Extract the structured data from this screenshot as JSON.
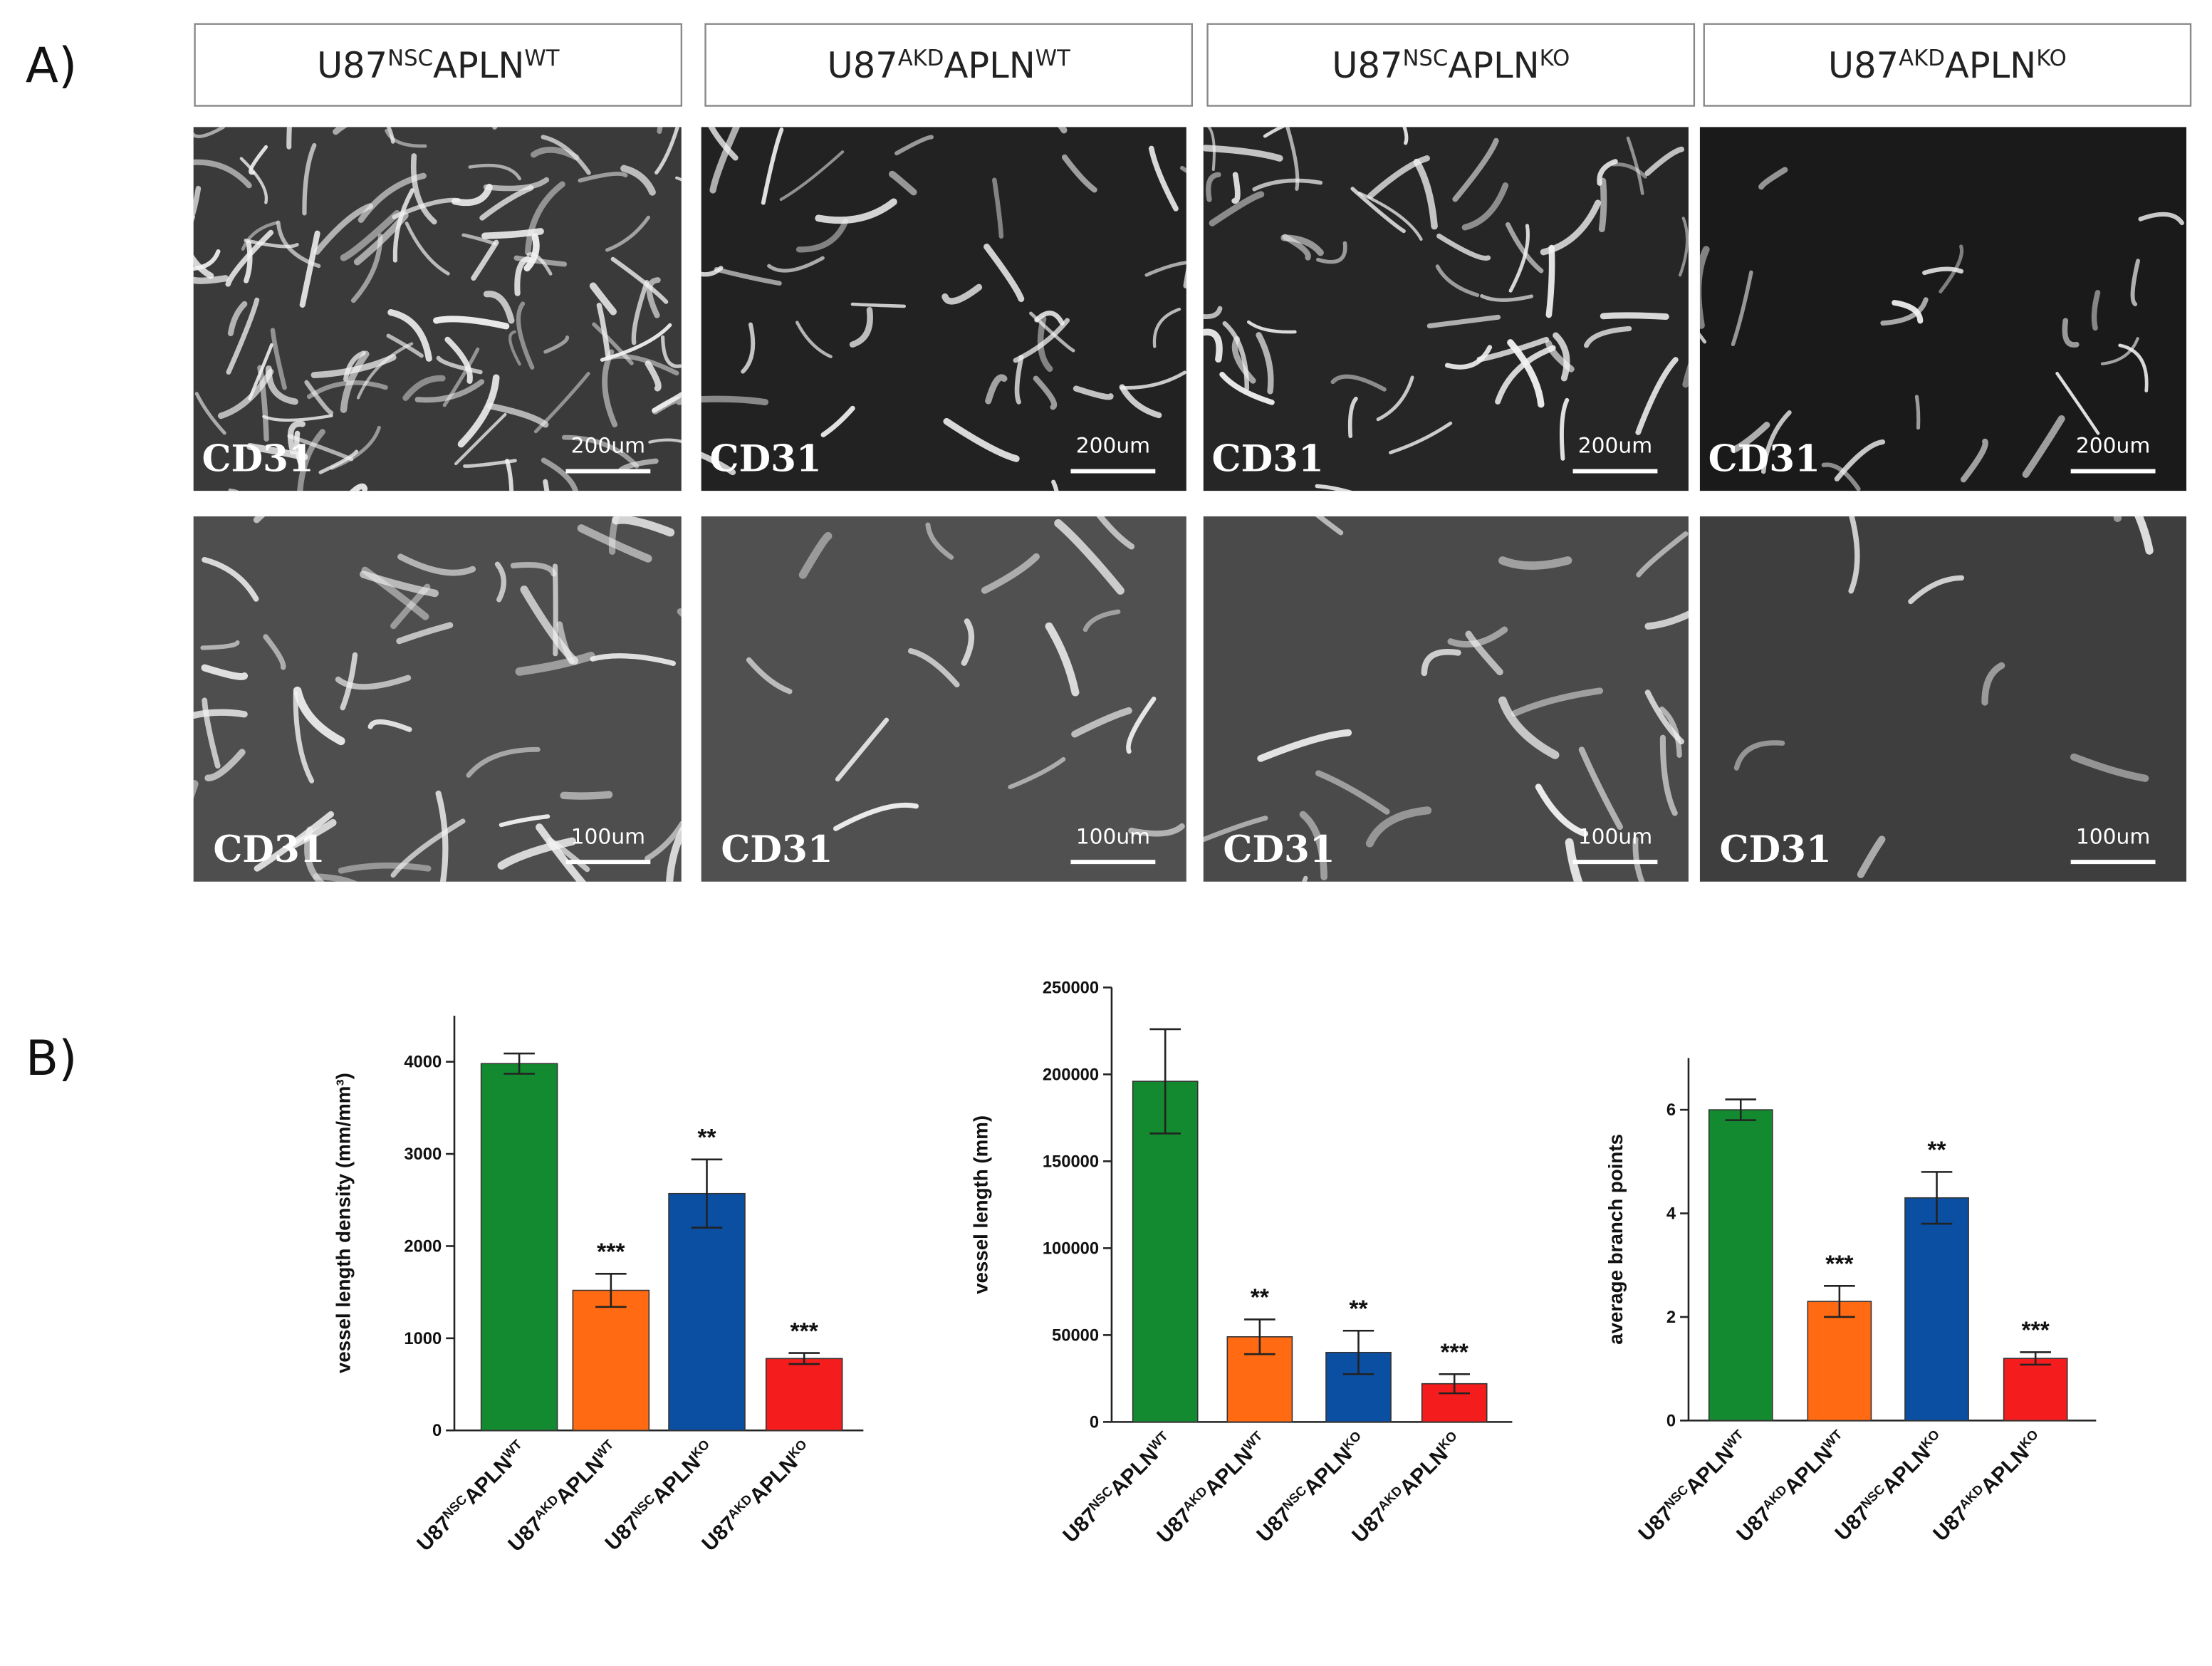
{
  "panel_a": {
    "label": "A)",
    "columns": [
      [
        "U87",
        "NSC",
        "APLN",
        "WT"
      ],
      [
        "U87",
        "AKD",
        "APLN",
        "WT"
      ],
      [
        "U87",
        "NSC",
        "APLN",
        "KO"
      ],
      [
        "U87",
        "AKD",
        "APLN",
        "KO"
      ]
    ],
    "rows": [
      {
        "stain": "CD31",
        "scale": "200um"
      },
      {
        "stain": "CD31",
        "scale": "100um"
      }
    ]
  },
  "panel_b": {
    "label": "B)"
  },
  "chart_data": [
    {
      "type": "bar",
      "ylabel": "vessel length density (mm/mm³)",
      "categories": [
        [
          "U87",
          "NSC",
          "APLN",
          "WT"
        ],
        [
          "U87",
          "AKD",
          "APLN",
          "WT"
        ],
        [
          "U87",
          "NSC",
          "APLN",
          "KO"
        ],
        [
          "U87",
          "AKD",
          "APLN",
          "KO"
        ]
      ],
      "values": [
        3980,
        1520,
        2570,
        780
      ],
      "errors": [
        110,
        180,
        370,
        60
      ],
      "colors": [
        "#138a30",
        "#ff6a12",
        "#0b4fa3",
        "#f41c1c"
      ],
      "significance": [
        null,
        "***",
        "**",
        "***"
      ],
      "ylim": [
        0,
        4500
      ],
      "yticks": [
        0,
        1000,
        2000,
        3000,
        4000
      ]
    },
    {
      "type": "bar",
      "ylabel": "vessel length (mm)",
      "categories": [
        [
          "U87",
          "NSC",
          "APLN",
          "WT"
        ],
        [
          "U87",
          "AKD",
          "APLN",
          "WT"
        ],
        [
          "U87",
          "NSC",
          "APLN",
          "KO"
        ],
        [
          "U87",
          "AKD",
          "APLN",
          "KO"
        ]
      ],
      "values": [
        196000,
        49000,
        40000,
        22000
      ],
      "errors": [
        30000,
        10000,
        12500,
        5500
      ],
      "colors": [
        "#138a30",
        "#ff6a12",
        "#0b4fa3",
        "#f41c1c"
      ],
      "significance": [
        null,
        "**",
        "**",
        "***"
      ],
      "ylim": [
        0,
        250000
      ],
      "yticks": [
        0,
        50000,
        100000,
        150000,
        200000,
        250000
      ]
    },
    {
      "type": "bar",
      "ylabel": "average branch points",
      "categories": [
        [
          "U87",
          "NSC",
          "APLN",
          "WT"
        ],
        [
          "U87",
          "AKD",
          "APLN",
          "WT"
        ],
        [
          "U87",
          "NSC",
          "APLN",
          "KO"
        ],
        [
          "U87",
          "AKD",
          "APLN",
          "KO"
        ]
      ],
      "values": [
        6.0,
        2.3,
        4.3,
        1.2
      ],
      "errors": [
        0.2,
        0.3,
        0.5,
        0.12
      ],
      "colors": [
        "#138a30",
        "#ff6a12",
        "#0b4fa3",
        "#f41c1c"
      ],
      "significance": [
        null,
        "***",
        "**",
        "***"
      ],
      "ylim": [
        0,
        7
      ],
      "yticks": [
        0,
        2,
        4,
        6
      ]
    }
  ]
}
